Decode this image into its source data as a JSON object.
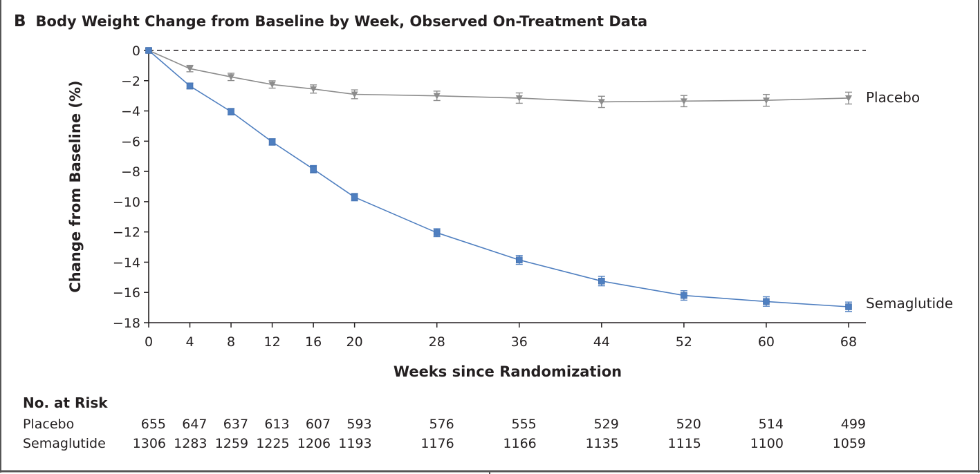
{
  "panel": {
    "letter": "B",
    "title": "Body Weight Change from Baseline by Week, Observed On-Treatment Data"
  },
  "colors": {
    "placebo": "#8c8c8c",
    "semaglutide": "#4f7fc0",
    "text": "#231f20",
    "frame": "#555555"
  },
  "chart_data": {
    "type": "line",
    "title": "Body Weight Change from Baseline by Week, Observed On-Treatment Data",
    "xlabel": "Weeks since Randomization",
    "ylabel": "Change from Baseline (%)",
    "x": [
      0,
      4,
      8,
      12,
      16,
      20,
      28,
      36,
      44,
      52,
      60,
      68
    ],
    "xticks": [
      0,
      4,
      8,
      12,
      16,
      20,
      28,
      36,
      44,
      52,
      60,
      68
    ],
    "xlim": [
      0,
      70
    ],
    "ylim": [
      -18,
      0
    ],
    "yticks": [
      0,
      -2,
      -4,
      -6,
      -8,
      -10,
      -12,
      -14,
      -16,
      -18
    ],
    "ytick_labels": [
      "0",
      "−2",
      "−4",
      "−6",
      "−8",
      "−10",
      "−12",
      "−14",
      "−16",
      "−18"
    ],
    "reference_line": 0,
    "series": [
      {
        "name": "Placebo",
        "marker": "triangle-down",
        "values": [
          0,
          -1.2,
          -1.75,
          -2.25,
          -2.55,
          -2.9,
          -3.0,
          -3.15,
          -3.4,
          -3.35,
          -3.3,
          -3.15
        ],
        "errors": [
          0.05,
          0.12,
          0.15,
          0.15,
          0.18,
          0.2,
          0.22,
          0.25,
          0.28,
          0.28,
          0.3,
          0.3
        ]
      },
      {
        "name": "Semaglutide",
        "marker": "square",
        "values": [
          0,
          -2.35,
          -4.05,
          -6.05,
          -7.85,
          -9.7,
          -12.05,
          -13.85,
          -15.25,
          -16.2,
          -16.6,
          -16.95
        ],
        "errors": [
          0.05,
          0.1,
          0.12,
          0.12,
          0.15,
          0.15,
          0.17,
          0.2,
          0.22,
          0.22,
          0.22,
          0.22
        ]
      }
    ]
  },
  "risk_table": {
    "title": "No. at Risk",
    "rows": [
      {
        "label": "Placebo",
        "values": [
          655,
          647,
          637,
          613,
          607,
          593,
          576,
          555,
          529,
          520,
          514,
          499
        ]
      },
      {
        "label": "Semaglutide",
        "values": [
          1306,
          1283,
          1259,
          1225,
          1206,
          1193,
          1176,
          1166,
          1135,
          1115,
          1100,
          1059
        ]
      }
    ]
  }
}
